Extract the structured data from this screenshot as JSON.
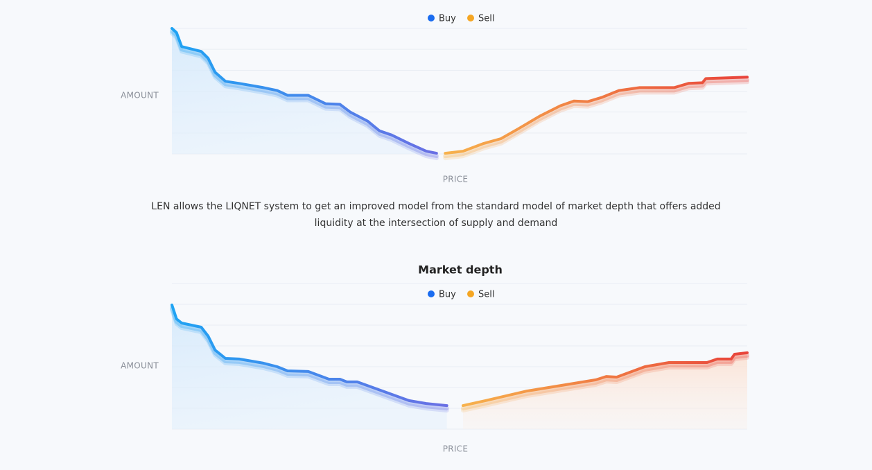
{
  "chart_data": [
    {
      "type": "line",
      "ylabel": "AMOUNT",
      "xlabel": "PRICE",
      "xlim": [
        0,
        100
      ],
      "ylim": [
        0,
        6
      ],
      "grid": true,
      "grid_divisions": 6,
      "series": [
        {
          "name": "Buy",
          "color": "#1a6cf0",
          "area": true,
          "x": [
            0,
            0.8,
            1.7,
            5.1,
            6.3,
            7.5,
            9.3,
            11.7,
            15.9,
            18.3,
            20.1,
            23.7,
            26.7,
            29.2,
            31,
            34,
            35.2,
            36.1,
            38.2,
            41.2,
            44.2,
            46
          ],
          "values": [
            6.0,
            5.8,
            5.13,
            4.9,
            4.57,
            3.9,
            3.47,
            3.37,
            3.17,
            3.03,
            2.8,
            2.8,
            2.4,
            2.37,
            2.0,
            1.57,
            1.3,
            1.1,
            0.9,
            0.5,
            0.13,
            0.03
          ]
        },
        {
          "name": "Sell",
          "color": "#f5a623",
          "area": false,
          "x": [
            47.5,
            50.6,
            54.2,
            57.2,
            60.2,
            63.9,
            67.5,
            69.9,
            72.3,
            74.7,
            77.7,
            81.3,
            87.3,
            89.8,
            92.2,
            92.8,
            100
          ],
          "values": [
            0.03,
            0.13,
            0.5,
            0.73,
            1.2,
            1.8,
            2.3,
            2.53,
            2.5,
            2.7,
            3.03,
            3.17,
            3.17,
            3.37,
            3.4,
            3.6,
            3.67
          ]
        }
      ]
    },
    {
      "type": "line",
      "title": "Market depth",
      "ylabel": "AMOUNT",
      "xlabel": "PRICE",
      "xlim": [
        0,
        100
      ],
      "ylim": [
        0,
        7
      ],
      "grid": true,
      "grid_divisions": 7,
      "series": [
        {
          "name": "Buy",
          "color": "#1a6cf0",
          "area": true,
          "x": [
            0,
            0.8,
            1.7,
            5.1,
            6.3,
            7.5,
            9.3,
            11.7,
            15.9,
            18.3,
            20.1,
            23.7,
            27.3,
            29.2,
            30.4,
            32.2,
            35.2,
            38.2,
            41.2,
            44.2,
            47.8
          ],
          "values": [
            5.97,
            5.3,
            5.1,
            4.9,
            4.47,
            3.8,
            3.4,
            3.37,
            3.17,
            3.0,
            2.8,
            2.77,
            2.4,
            2.4,
            2.27,
            2.27,
            1.97,
            1.67,
            1.37,
            1.23,
            1.13
          ]
        },
        {
          "name": "Sell",
          "color": "#f5a623",
          "area": true,
          "x": [
            50.6,
            54.5,
            61.7,
            67.7,
            73.7,
            75.5,
            77.3,
            82.2,
            86.4,
            93,
            94.8,
            97.2,
            97.8,
            100
          ],
          "values": [
            1.13,
            1.37,
            1.83,
            2.1,
            2.37,
            2.53,
            2.5,
            3.0,
            3.2,
            3.2,
            3.37,
            3.37,
            3.6,
            3.67
          ]
        }
      ]
    }
  ],
  "description": "LEN allows the LIQNET system to get an improved model from the standard model of market depth that offers added liquidity at the intersection of supply and demand"
}
